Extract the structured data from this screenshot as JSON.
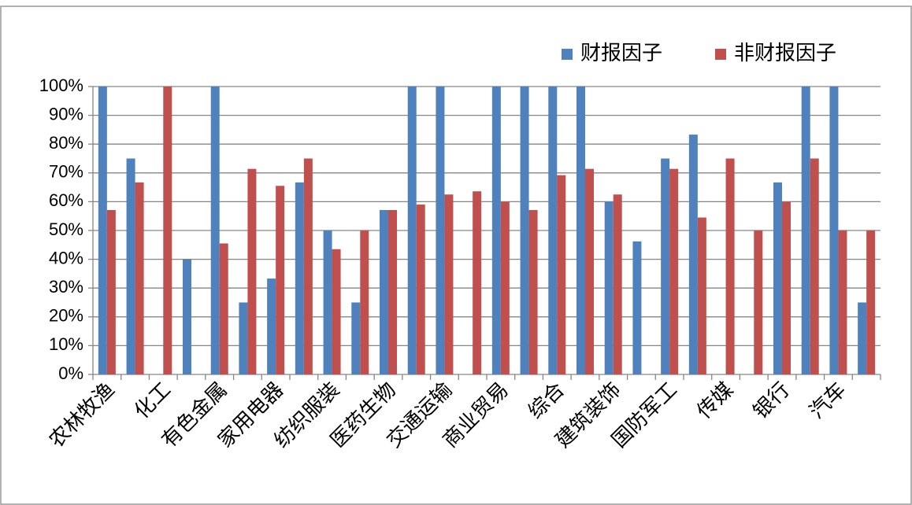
{
  "chart_data": {
    "type": "bar",
    "categories": [
      "农林牧渔",
      null,
      "化工",
      null,
      "有色金属",
      null,
      "家用电器",
      null,
      "纺织服装",
      null,
      "医药生物",
      null,
      "交通运输",
      null,
      "商业贸易",
      null,
      "综合",
      null,
      "建筑装饰",
      null,
      "国防军工",
      null,
      "传媒",
      null,
      "银行",
      null,
      "汽车",
      null
    ],
    "series": [
      {
        "name": "财报因子",
        "color": "#4f81bd",
        "values": [
          100,
          75,
          0,
          40,
          100,
          25,
          33.3,
          66.7,
          50,
          25,
          57.1,
          100,
          100,
          0,
          100,
          100,
          100,
          100,
          60,
          46.2,
          75,
          83.3,
          0,
          0,
          66.7,
          100,
          100,
          25
        ]
      },
      {
        "name": "非财报因子",
        "color": "#c0504d",
        "values": [
          57.1,
          66.7,
          100,
          0,
          45.5,
          71.4,
          65.5,
          75,
          43.5,
          50,
          57.1,
          59,
          62.5,
          63.6,
          60,
          57.1,
          69.2,
          71.4,
          62.5,
          0,
          71.4,
          54.5,
          75,
          50,
          60,
          75,
          50,
          50
        ]
      }
    ],
    "ylim": [
      0,
      100
    ],
    "yticks": [
      {
        "value": 0,
        "label": "0%"
      },
      {
        "value": 10,
        "label": "10%"
      },
      {
        "value": 20,
        "label": "20%"
      },
      {
        "value": 30,
        "label": "30%"
      },
      {
        "value": 40,
        "label": "40%"
      },
      {
        "value": 50,
        "label": "50%"
      },
      {
        "value": 60,
        "label": "60%"
      },
      {
        "value": 70,
        "label": "70%"
      },
      {
        "value": 80,
        "label": "80%"
      },
      {
        "value": 90,
        "label": "90%"
      },
      {
        "value": 100,
        "label": "100%"
      }
    ],
    "grid": true,
    "legend": "top-right"
  }
}
